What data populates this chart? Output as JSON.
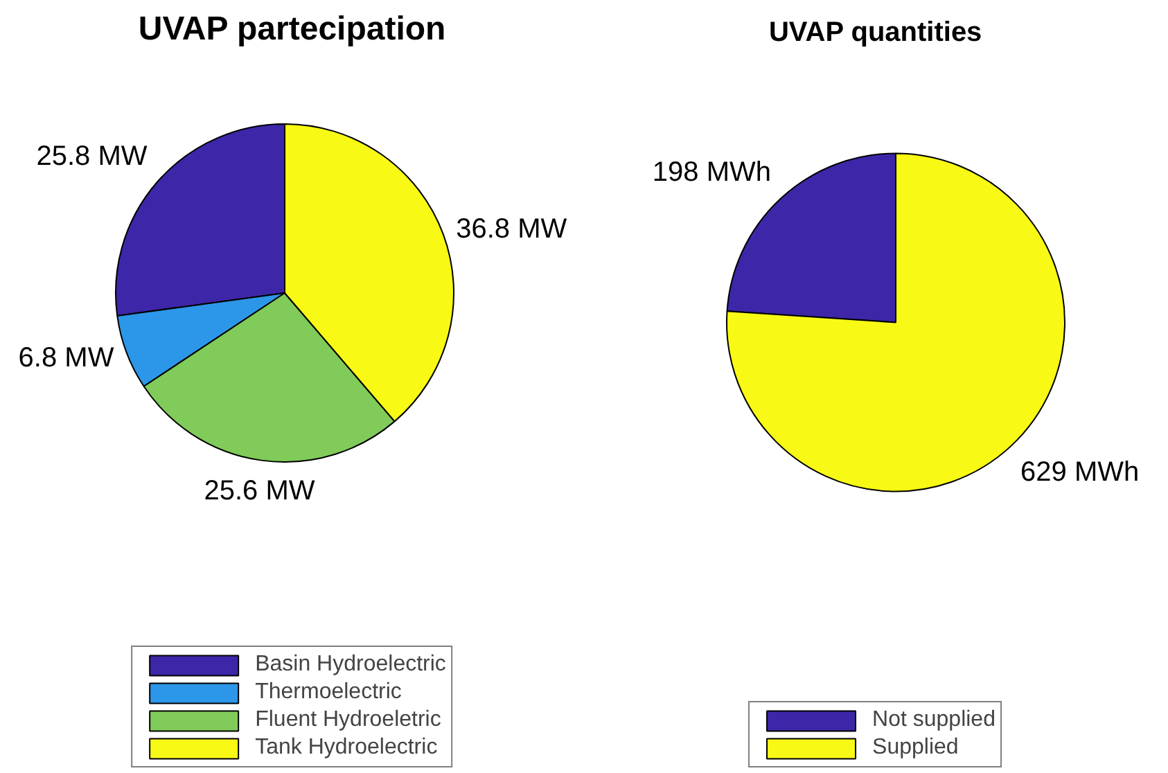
{
  "chart_data": [
    {
      "type": "pie",
      "title": "UVAP partecipation",
      "categories": [
        "Basin Hydroelectric",
        "Thermoelectric",
        "Fluent Hydroeletric",
        "Tank Hydroelectric"
      ],
      "values": [
        25.8,
        6.8,
        25.6,
        36.8
      ],
      "value_labels": [
        "25.8 MW",
        "6.8 MW",
        "25.6 MW",
        "36.8 MW"
      ],
      "colors": [
        "#3e26a8",
        "#2c97e8",
        "#80cb59",
        "#f8fa15"
      ],
      "legend": "bottom"
    },
    {
      "type": "pie",
      "title": "UVAP quantities",
      "categories": [
        "Not supplied",
        "Supplied"
      ],
      "values": [
        198,
        629
      ],
      "value_labels": [
        "198 MWh",
        "629 MWh"
      ],
      "colors": [
        "#3e26a8",
        "#f8fa15"
      ],
      "legend": "bottom"
    }
  ]
}
